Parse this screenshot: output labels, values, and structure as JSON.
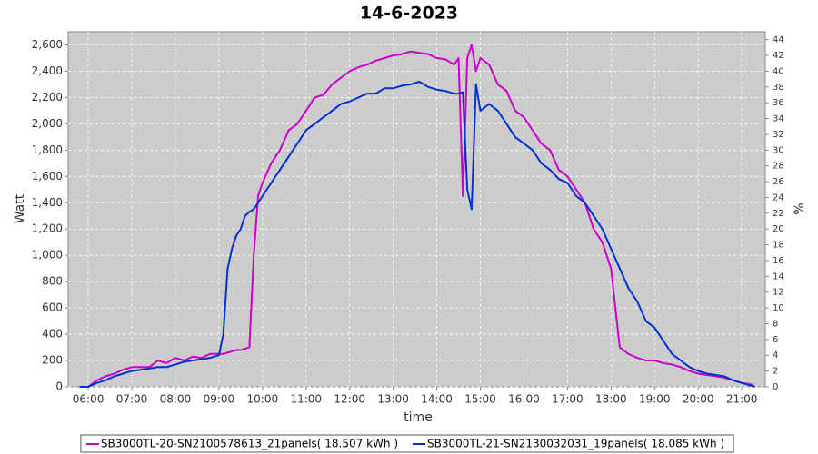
{
  "chart_data": {
    "type": "line",
    "title": "14-6-2023",
    "x_label": "time",
    "y_label": "Watt",
    "y2_label": "%",
    "x": [
      5.8,
      6.0,
      6.2,
      6.4,
      6.6,
      6.8,
      7.0,
      7.2,
      7.4,
      7.6,
      7.8,
      8.0,
      8.2,
      8.4,
      8.6,
      8.8,
      9.0,
      9.1,
      9.2,
      9.3,
      9.4,
      9.5,
      9.6,
      9.7,
      9.8,
      9.9,
      10.0,
      10.2,
      10.4,
      10.6,
      10.8,
      11.0,
      11.2,
      11.4,
      11.6,
      11.8,
      12.0,
      12.2,
      12.4,
      12.6,
      12.8,
      13.0,
      13.2,
      13.4,
      13.6,
      13.8,
      14.0,
      14.2,
      14.4,
      14.5,
      14.6,
      14.7,
      14.8,
      14.9,
      15.0,
      15.2,
      15.4,
      15.6,
      15.8,
      16.0,
      16.2,
      16.4,
      16.6,
      16.8,
      17.0,
      17.2,
      17.4,
      17.6,
      17.8,
      18.0,
      18.2,
      18.4,
      18.6,
      18.8,
      19.0,
      19.2,
      19.4,
      19.6,
      19.8,
      20.0,
      20.2,
      20.4,
      20.6,
      20.8,
      21.0,
      21.2,
      21.3
    ],
    "series": [
      {
        "name": "SB3000TL-20-SN2100578613_21panels( 18.507 kWh )",
        "color": "#cc00cc",
        "values": [
          0,
          0,
          50,
          80,
          100,
          130,
          150,
          150,
          150,
          200,
          180,
          220,
          200,
          230,
          220,
          250,
          250,
          250,
          260,
          270,
          280,
          280,
          290,
          300,
          1000,
          1450,
          1550,
          1700,
          1800,
          1950,
          2000,
          2100,
          2200,
          2220,
          2300,
          2350,
          2400,
          2430,
          2450,
          2480,
          2500,
          2520,
          2530,
          2550,
          2540,
          2530,
          2500,
          2490,
          2450,
          2500,
          1450,
          2500,
          2600,
          2400,
          2500,
          2450,
          2300,
          2250,
          2100,
          2050,
          1950,
          1850,
          1800,
          1650,
          1600,
          1500,
          1400,
          1200,
          1100,
          900,
          300,
          250,
          220,
          200,
          200,
          180,
          170,
          150,
          120,
          100,
          90,
          80,
          70,
          50,
          30,
          20,
          0
        ]
      },
      {
        "name": "SB3000TL-21-SN2130032031_19panels( 18.085 kWh )",
        "color": "#0033cc",
        "values": [
          0,
          0,
          30,
          50,
          80,
          100,
          120,
          130,
          140,
          150,
          150,
          170,
          190,
          200,
          210,
          220,
          240,
          400,
          900,
          1050,
          1150,
          1200,
          1300,
          1330,
          1350,
          1400,
          1450,
          1550,
          1650,
          1750,
          1850,
          1950,
          2000,
          2050,
          2100,
          2150,
          2170,
          2200,
          2230,
          2230,
          2270,
          2270,
          2290,
          2300,
          2320,
          2280,
          2260,
          2250,
          2230,
          2230,
          2240,
          1500,
          1350,
          2300,
          2100,
          2150,
          2100,
          2000,
          1900,
          1850,
          1800,
          1700,
          1650,
          1580,
          1550,
          1450,
          1400,
          1300,
          1200,
          1050,
          900,
          750,
          650,
          500,
          450,
          350,
          250,
          200,
          150,
          120,
          100,
          90,
          80,
          50,
          30,
          10,
          0
        ]
      }
    ],
    "xlim": [
      5.54,
      21.54
    ],
    "xticks": [
      {
        "value": 6,
        "label": "06:00"
      },
      {
        "value": 7,
        "label": "07:00"
      },
      {
        "value": 8,
        "label": "08:00"
      },
      {
        "value": 9,
        "label": "09:00"
      },
      {
        "value": 10,
        "label": "10:00"
      },
      {
        "value": 11,
        "label": "11:00"
      },
      {
        "value": 12,
        "label": "12:00"
      },
      {
        "value": 13,
        "label": "13:00"
      },
      {
        "value": 14,
        "label": "14:00"
      },
      {
        "value": 15,
        "label": "15:00"
      },
      {
        "value": 16,
        "label": "16:00"
      },
      {
        "value": 17,
        "label": "17:00"
      },
      {
        "value": 18,
        "label": "18:00"
      },
      {
        "value": 19,
        "label": "19:00"
      },
      {
        "value": 20,
        "label": "20:00"
      },
      {
        "value": 21,
        "label": "21:00"
      }
    ],
    "ylim": [
      0,
      2700
    ],
    "yticks": [
      0,
      200,
      400,
      600,
      800,
      {
        "value": 1000,
        "label": "1,000"
      },
      {
        "value": 1200,
        "label": "1,200"
      },
      {
        "value": 1400,
        "label": "1,400"
      },
      {
        "value": 1600,
        "label": "1,600"
      },
      {
        "value": 1800,
        "label": "1,800"
      },
      {
        "value": 2000,
        "label": "2,000"
      },
      {
        "value": 2200,
        "label": "2,200"
      },
      {
        "value": 2400,
        "label": "2,400"
      },
      {
        "value": 2600,
        "label": "2,600"
      }
    ],
    "y2lim": [
      0,
      45
    ],
    "y2ticks": [
      0,
      2,
      4,
      6,
      8,
      10,
      12,
      14,
      16,
      18,
      20,
      22,
      24,
      26,
      28,
      30,
      32,
      34,
      36,
      38,
      40,
      42,
      44
    ],
    "grid": true,
    "legend": "bottom"
  }
}
